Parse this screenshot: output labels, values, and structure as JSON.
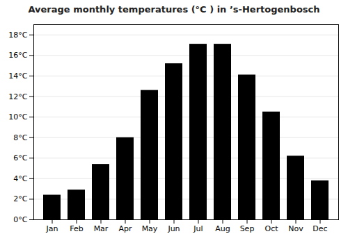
{
  "chart_data": {
    "type": "bar",
    "title": "Average monthly temperatures (°C ) in ’s-Hertogenbosch",
    "categories": [
      "Jan",
      "Feb",
      "Mar",
      "Apr",
      "May",
      "Jun",
      "Jul",
      "Aug",
      "Sep",
      "Oct",
      "Nov",
      "Dec"
    ],
    "values": [
      2.4,
      2.9,
      5.4,
      8.0,
      12.6,
      15.2,
      17.1,
      17.1,
      14.1,
      10.5,
      6.2,
      3.8
    ],
    "ylim": [
      0,
      19
    ],
    "yticks": [
      {
        "value": 0,
        "label": "0°C"
      },
      {
        "value": 2,
        "label": "2°C"
      },
      {
        "value": 4,
        "label": "4°C"
      },
      {
        "value": 6,
        "label": "6°C"
      },
      {
        "value": 8,
        "label": "8°C"
      },
      {
        "value": 10,
        "label": "10°C"
      },
      {
        "value": 12,
        "label": "12°C"
      },
      {
        "value": 14,
        "label": "14°C"
      },
      {
        "value": 16,
        "label": "16°C"
      },
      {
        "value": 18,
        "label": "18°C"
      }
    ],
    "grid": true
  }
}
